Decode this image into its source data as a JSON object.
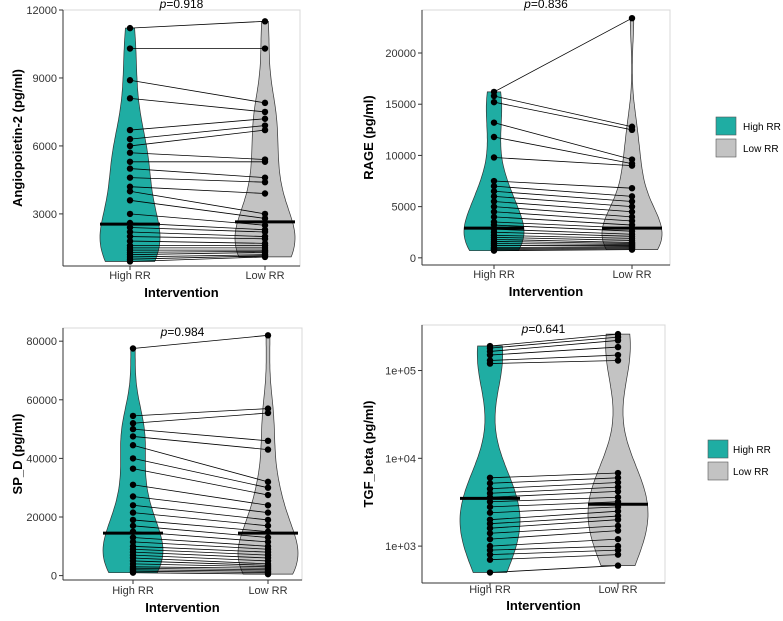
{
  "figure": {
    "legend_labels": [
      "High RR",
      "Low RR"
    ]
  },
  "chart_data": [
    {
      "type": "violin",
      "title": "p=0.918",
      "p_label": "p",
      "p_value": "=0.918",
      "xlabel": "Intervention",
      "ylabel": "Angiopoietin-2 (pg/ml)",
      "categories": [
        "High RR",
        "Low RR"
      ],
      "scale": "linear",
      "ylim": [
        700,
        12000
      ],
      "yticks": [
        3000,
        6000,
        9000,
        12000
      ],
      "ytick_labels": [
        "3000",
        "6000",
        "9000",
        "12000"
      ],
      "colors": [
        "#1fada3",
        "#c3c3c3"
      ],
      "medians": [
        2550,
        2650
      ],
      "legend": [
        "High RR",
        "Low RR"
      ],
      "series": [
        {
          "name": "High RR",
          "values": [
            11200,
            10300,
            8900,
            8100,
            6700,
            6300,
            6000,
            5700,
            5300,
            5000,
            4600,
            4200,
            4000,
            3600,
            3000,
            2600,
            2400,
            2200,
            2000,
            1800,
            1600,
            1500,
            1400,
            1300,
            1200,
            1100,
            1000,
            900
          ]
        },
        {
          "name": "Low RR",
          "values": [
            11500,
            10300,
            7900,
            7500,
            7200,
            6900,
            6700,
            5400,
            5300,
            4600,
            4400,
            3900,
            3000,
            2800,
            2500,
            2300,
            2200,
            2000,
            1900,
            1700,
            1600,
            1500,
            1400,
            1350,
            1300,
            1200,
            1150,
            1100
          ]
        }
      ]
    },
    {
      "type": "violin",
      "title": "p=0.836",
      "p_label": "p",
      "p_value": "=0.836",
      "xlabel": "Intervention",
      "ylabel": "RAGE (pg/ml)",
      "categories": [
        "High RR",
        "Low RR"
      ],
      "scale": "linear",
      "ylim": [
        -700,
        24200
      ],
      "yticks": [
        0,
        5000,
        10000,
        15000,
        20000
      ],
      "ytick_labels": [
        "0",
        "5000",
        "10000",
        "15000",
        "20000"
      ],
      "colors": [
        "#1fada3",
        "#c3c3c3"
      ],
      "medians": [
        2900,
        2900
      ],
      "legend": [
        "High RR",
        "Low RR"
      ],
      "series": [
        {
          "name": "High RR",
          "values": [
            16200,
            15800,
            15200,
            13200,
            11800,
            9800,
            7500,
            7000,
            6500,
            6000,
            5500,
            5000,
            4500,
            4000,
            3500,
            3200,
            2800,
            2500,
            2200,
            2000,
            1800,
            1600,
            1400,
            1200,
            1000,
            900,
            800,
            700
          ]
        },
        {
          "name": "Low RR",
          "values": [
            23400,
            12800,
            12500,
            9600,
            9200,
            9000,
            6800,
            6000,
            5500,
            5000,
            4500,
            4000,
            3600,
            3200,
            2900,
            2600,
            2300,
            2100,
            1900,
            1700,
            1500,
            1400,
            1300,
            1200,
            1100,
            1000,
            900,
            800
          ]
        }
      ]
    },
    {
      "type": "violin",
      "title": "p=0.984",
      "p_label": "p",
      "p_value": "=0.984",
      "xlabel": "Intervention",
      "ylabel": "SP_D (pg/ml)",
      "categories": [
        "High RR",
        "Low RR"
      ],
      "scale": "linear",
      "ylim": [
        -1500,
        84500
      ],
      "yticks": [
        0,
        20000,
        40000,
        60000,
        80000
      ],
      "ytick_labels": [
        "0",
        "20000",
        "40000",
        "60000",
        "80000"
      ],
      "colors": [
        "#1fada3",
        "#c3c3c3"
      ],
      "medians": [
        14500,
        14500
      ],
      "legend": [
        "High RR",
        "Low RR"
      ],
      "series": [
        {
          "name": "High RR",
          "values": [
            77500,
            54500,
            52000,
            50000,
            47500,
            44500,
            40000,
            36500,
            31000,
            27000,
            24000,
            21500,
            19000,
            17000,
            15000,
            13000,
            11500,
            10000,
            9000,
            8000,
            7000,
            6000,
            5000,
            4000,
            3000,
            2500,
            2000,
            1500,
            1000
          ]
        },
        {
          "name": "Low RR",
          "values": [
            82000,
            57000,
            55500,
            46000,
            43000,
            32000,
            30000,
            27500,
            24000,
            21500,
            19000,
            17000,
            15000,
            13000,
            11500,
            10000,
            9000,
            8000,
            7000,
            6000,
            5000,
            4000,
            3500,
            3000,
            2500,
            2000,
            1500,
            1000,
            500
          ]
        }
      ]
    },
    {
      "type": "violin",
      "title": "p=0.641",
      "p_label": "p",
      "p_value": "=0.641",
      "xlabel": "Intervention",
      "ylabel": "TGF_beta (pg/ml)",
      "categories": [
        "High RR",
        "Low RR"
      ],
      "scale": "log10",
      "ylim": [
        380,
        330000
      ],
      "yticks": [
        1000,
        10000,
        100000
      ],
      "ytick_labels": [
        "1e+03",
        "1e+04",
        "1e+05"
      ],
      "colors": [
        "#1fada3",
        "#c3c3c3"
      ],
      "medians": [
        3500,
        3000
      ],
      "legend": [
        "High RR",
        "Low RR"
      ],
      "series": [
        {
          "name": "High RR",
          "values": [
            190000,
            180000,
            165000,
            150000,
            130000,
            120000,
            6000,
            5200,
            4500,
            4000,
            3600,
            3200,
            2800,
            2400,
            2000,
            1800,
            1600,
            1400,
            1200,
            1000,
            900,
            800,
            700,
            500
          ]
        },
        {
          "name": "Low RR",
          "values": [
            260000,
            240000,
            220000,
            185000,
            150000,
            130000,
            6800,
            6000,
            5300,
            4700,
            4200,
            3600,
            3200,
            2800,
            2500,
            2200,
            2000,
            1700,
            1500,
            1200,
            1000,
            900,
            800,
            600
          ]
        }
      ]
    }
  ]
}
